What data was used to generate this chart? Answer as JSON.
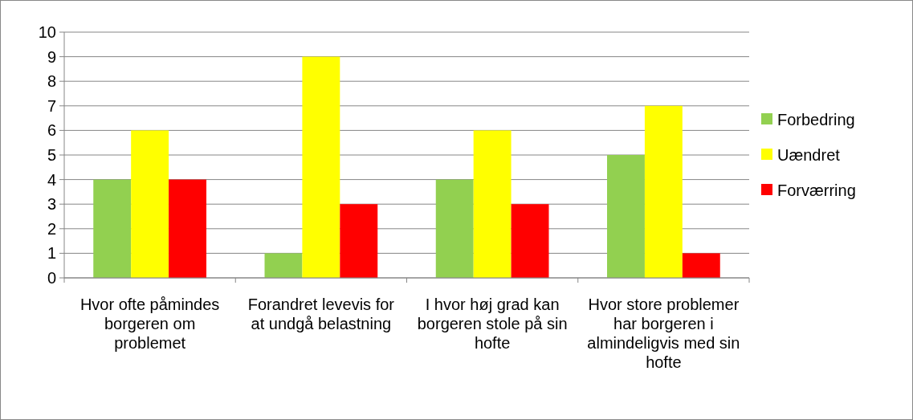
{
  "chart_data": {
    "type": "bar",
    "categories": [
      "Hvor ofte påmindes borgeren om problemet",
      "Forandret levevis for at undgå belastning",
      "I hvor høj grad kan borgeren stole på sin hofte",
      "Hvor store problemer har borgeren i almindeligvis med sin hofte"
    ],
    "series": [
      {
        "name": "Forbedring",
        "color": "#92d050",
        "values": [
          4,
          1,
          4,
          5
        ]
      },
      {
        "name": "Uændret",
        "color": "#ffff00",
        "values": [
          6,
          9,
          6,
          7
        ]
      },
      {
        "name": "Forværring",
        "color": "#ff0000",
        "values": [
          4,
          3,
          3,
          1
        ]
      }
    ],
    "ylim": [
      0,
      10
    ],
    "yticks": [
      0,
      1,
      2,
      3,
      4,
      5,
      6,
      7,
      8,
      9,
      10
    ],
    "grid": "y",
    "legend": "right"
  }
}
